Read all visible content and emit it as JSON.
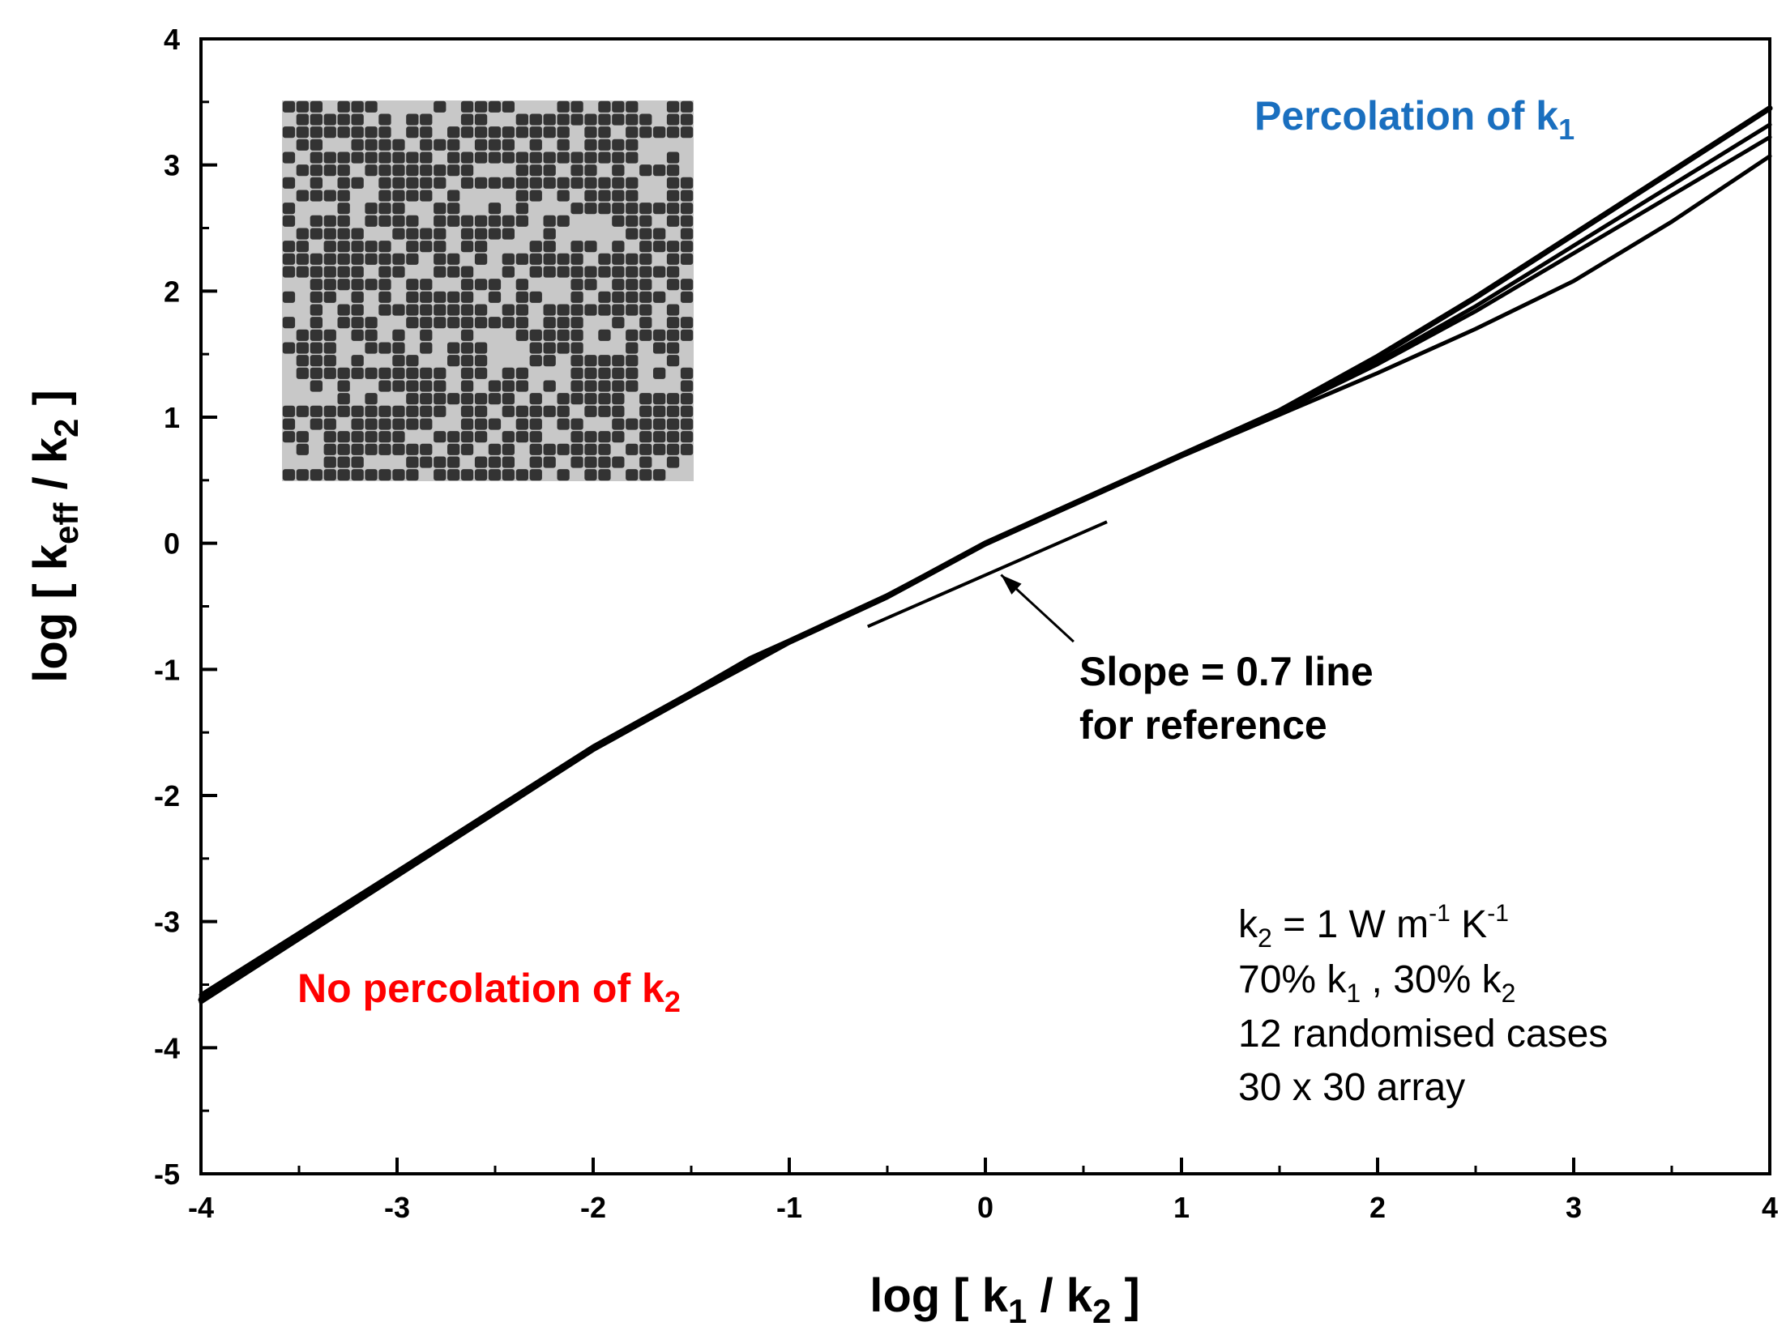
{
  "chart_data": {
    "type": "line",
    "xlabel": {
      "prefix": "log  [ k",
      "sub1": "1",
      "mid": " / k",
      "sub2": "2",
      "suffix": " ]"
    },
    "ylabel": {
      "prefix": "log [ k",
      "sub1": "eff",
      "mid": " / k",
      "sub2": "2",
      "suffix": " ]"
    },
    "xlim": [
      -4,
      4
    ],
    "ylim": [
      -5,
      4
    ],
    "x_ticks": [
      -4,
      -3,
      -2,
      -1,
      0,
      1,
      2,
      3,
      4
    ],
    "y_ticks": [
      -5,
      -4,
      -3,
      -2,
      -1,
      0,
      1,
      2,
      3,
      4
    ],
    "x_tick_labels": [
      "-4",
      "-3",
      "-2",
      "-1",
      "0",
      "1",
      "2",
      "3",
      "4"
    ],
    "y_tick_labels": [
      "-5",
      "-4",
      "-3",
      "-2",
      "-1",
      "0",
      "1",
      "2",
      "3",
      "4"
    ],
    "grid": false,
    "legend": "none",
    "series_color": "#000000",
    "series": [
      {
        "x": [
          -4,
          -3,
          -2,
          -1.5,
          -1.2,
          -1,
          -0.5,
          0,
          0.5,
          1,
          1.5,
          2,
          2.5,
          3,
          3.5,
          4
        ],
        "y": [
          -3.62,
          -2.62,
          -1.62,
          -1.2,
          -0.93,
          -0.78,
          -0.42,
          0.0,
          0.35,
          0.7,
          1.05,
          1.48,
          1.95,
          2.45,
          2.95,
          3.45
        ]
      },
      {
        "x": [
          -4,
          -3,
          -2,
          -1.5,
          -1.2,
          -1,
          -0.5,
          0,
          0.5,
          1,
          1.5,
          2,
          2.5,
          3,
          3.5,
          4
        ],
        "y": [
          -3.58,
          -2.6,
          -1.61,
          -1.18,
          -0.91,
          -0.77,
          -0.41,
          0.0,
          0.35,
          0.7,
          1.04,
          1.44,
          1.88,
          2.36,
          2.84,
          3.32
        ]
      },
      {
        "x": [
          -4,
          -3,
          -2,
          -1.5,
          -1.2,
          -1,
          -0.5,
          0,
          0.5,
          1,
          1.5,
          2,
          2.5,
          3,
          3.5,
          4
        ],
        "y": [
          -3.6,
          -2.61,
          -1.62,
          -1.19,
          -0.94,
          -0.78,
          -0.42,
          0.0,
          0.35,
          0.7,
          1.04,
          1.42,
          1.84,
          2.3,
          2.76,
          3.22
        ]
      },
      {
        "x": [
          -4,
          -3,
          -2,
          -1.5,
          -1.2,
          -1,
          -0.5,
          0,
          0.5,
          1,
          1.5,
          2,
          2.5,
          3,
          3.5,
          4
        ],
        "y": [
          -3.64,
          -2.64,
          -1.64,
          -1.21,
          -0.96,
          -0.79,
          -0.43,
          -0.01,
          0.34,
          0.69,
          1.02,
          1.35,
          1.7,
          2.08,
          2.55,
          3.07
        ]
      }
    ],
    "reference_line": {
      "label": "Slope = 0.7 line",
      "slope": 0.7,
      "x": [
        -0.6,
        0.62
      ],
      "y": [
        -0.66,
        0.17
      ]
    },
    "reference_arrow": {
      "from": [
        0.45,
        -0.78
      ],
      "to": [
        0.08,
        -0.25
      ]
    },
    "annotations": {
      "percolation_k1": {
        "text": "Percolation of k",
        "sub": "1",
        "color": "#1a6fbf"
      },
      "no_percolation_k2": {
        "text": "No percolation of k",
        "sub": "2",
        "color": "#ff0000"
      },
      "slope_line1": "Slope = 0.7 line",
      "slope_line2": "for reference",
      "info": {
        "line1": {
          "a": "k",
          "a_sub": "2",
          "b": " = 1 W m",
          "b_sup": "-1",
          "c": " K",
          "c_sup": "-1"
        },
        "line2": {
          "a": "70% k",
          "a_sub": "1",
          "b": " , 30% k",
          "b_sub": "2"
        },
        "line3": "12 randomised cases",
        "line4": "30 x 30 array"
      }
    },
    "inset": {
      "description": "random 30 x 30 binary grid",
      "rows": 30,
      "cols": 30,
      "dark_fraction": 0.7,
      "dark_color": "#333333",
      "light_color": "#c8c8c8"
    }
  }
}
